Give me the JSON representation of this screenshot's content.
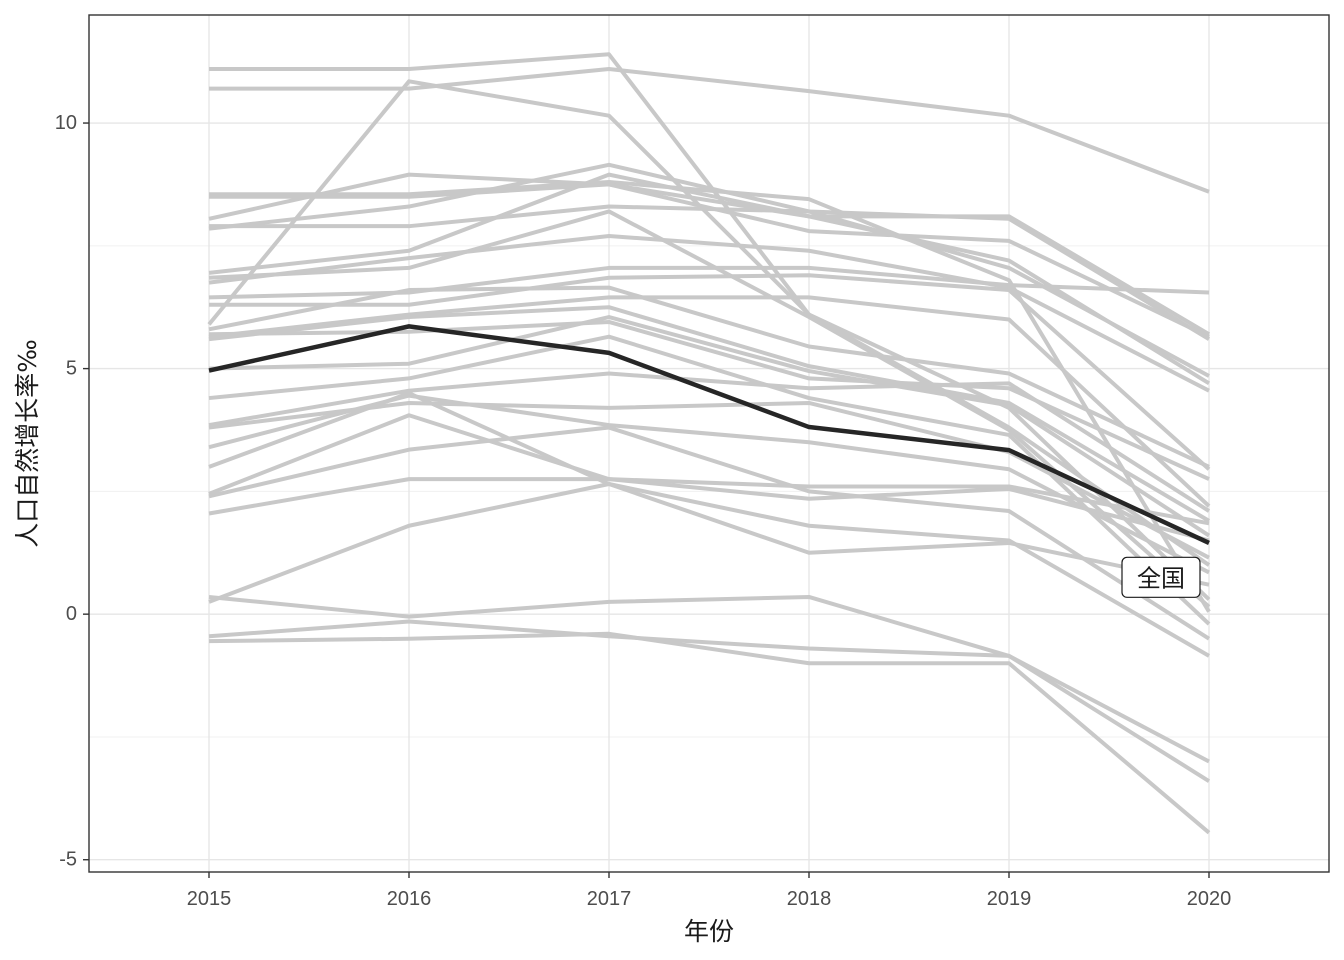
{
  "chart_data": {
    "type": "line",
    "title": "",
    "xlabel": "年份",
    "ylabel": "人口自然增长率‰",
    "x": [
      2015,
      2016,
      2017,
      2018,
      2019,
      2020
    ],
    "xlim": [
      2014.4,
      2020.6
    ],
    "ylim": [
      -5.25,
      12.2
    ],
    "yticks": [
      -5,
      0,
      5,
      10
    ],
    "ytick_labels": [
      "-5",
      "0",
      "5",
      "10"
    ],
    "xtick_labels": [
      "2015",
      "2016",
      "2017",
      "2018",
      "2019",
      "2020"
    ],
    "grid": true,
    "legend": "none",
    "annotation": {
      "text": "全国",
      "x": 2019.76,
      "y": 0.75
    },
    "highlight_series": {
      "name": "全国",
      "color": "#262626",
      "values": [
        4.96,
        5.86,
        5.32,
        3.81,
        3.34,
        1.45
      ]
    },
    "background_series_color": "#c8c8c8",
    "series": [
      {
        "values": [
          11.1,
          11.1,
          11.4,
          6.1,
          4.2,
          0.3
        ]
      },
      {
        "values": [
          10.7,
          10.7,
          11.1,
          10.65,
          10.15,
          8.6
        ]
      },
      {
        "values": [
          5.9,
          10.85,
          10.15,
          6.1,
          3.8,
          1.0
        ]
      },
      {
        "values": [
          8.55,
          8.55,
          8.8,
          8.45,
          6.8,
          0.05
        ]
      },
      {
        "values": [
          8.5,
          8.5,
          8.75,
          8.1,
          8.1,
          5.7
        ]
      },
      {
        "values": [
          8.05,
          8.95,
          8.75,
          7.8,
          7.6,
          5.65
        ]
      },
      {
        "values": [
          7.85,
          8.3,
          9.15,
          8.2,
          8.05,
          5.6
        ]
      },
      {
        "values": [
          7.9,
          7.9,
          8.3,
          8.2,
          7.05,
          4.85
        ]
      },
      {
        "values": [
          6.95,
          7.4,
          8.95,
          8.1,
          7.2,
          4.7
        ]
      },
      {
        "values": [
          6.85,
          7.05,
          8.2,
          6.05,
          3.75,
          0.15
        ]
      },
      {
        "values": [
          6.75,
          7.25,
          7.7,
          7.4,
          6.65,
          4.55
        ]
      },
      {
        "values": [
          6.45,
          6.55,
          7.05,
          7.05,
          6.7,
          6.55
        ]
      },
      {
        "values": [
          6.3,
          6.3,
          6.85,
          6.9,
          6.6,
          2.95
        ]
      },
      {
        "values": [
          5.8,
          6.6,
          6.65,
          5.45,
          4.9,
          3.0
        ]
      },
      {
        "values": [
          5.65,
          6.1,
          6.45,
          6.45,
          6.0,
          2.2
        ]
      },
      {
        "values": [
          5.6,
          6.05,
          6.25,
          5.05,
          4.3,
          1.9
        ]
      },
      {
        "values": [
          5.7,
          5.75,
          5.95,
          4.8,
          4.6,
          2.75
        ]
      },
      {
        "values": [
          5.0,
          5.1,
          6.05,
          4.95,
          4.25,
          1.6
        ]
      },
      {
        "values": [
          4.4,
          4.8,
          5.65,
          4.4,
          3.65,
          -0.2
        ]
      },
      {
        "values": [
          3.85,
          4.55,
          4.9,
          4.6,
          4.7,
          2.1
        ]
      },
      {
        "values": [
          3.8,
          4.3,
          4.2,
          4.3,
          3.3,
          1.15
        ]
      },
      {
        "values": [
          3.4,
          4.45,
          3.85,
          3.5,
          2.95,
          0.85
        ]
      },
      {
        "values": [
          2.45,
          4.05,
          2.75,
          2.35,
          2.55,
          1.5
        ]
      },
      {
        "values": [
          2.4,
          3.35,
          3.8,
          2.5,
          2.1,
          -0.5
        ]
      },
      {
        "values": [
          3.0,
          4.5,
          2.65,
          1.8,
          1.5,
          -0.85
        ]
      },
      {
        "values": [
          2.05,
          2.75,
          2.75,
          2.6,
          2.6,
          1.85
        ]
      },
      {
        "values": [
          0.25,
          1.8,
          2.65,
          1.25,
          1.45,
          0.6
        ]
      },
      {
        "values": [
          0.35,
          -0.05,
          0.25,
          0.35,
          -0.85,
          -3.0
        ]
      },
      {
        "values": [
          -0.45,
          -0.15,
          -0.45,
          -0.7,
          -0.85,
          -3.4
        ]
      },
      {
        "values": [
          -0.55,
          -0.5,
          -0.4,
          -1.0,
          -1.0,
          -4.45
        ]
      }
    ]
  }
}
